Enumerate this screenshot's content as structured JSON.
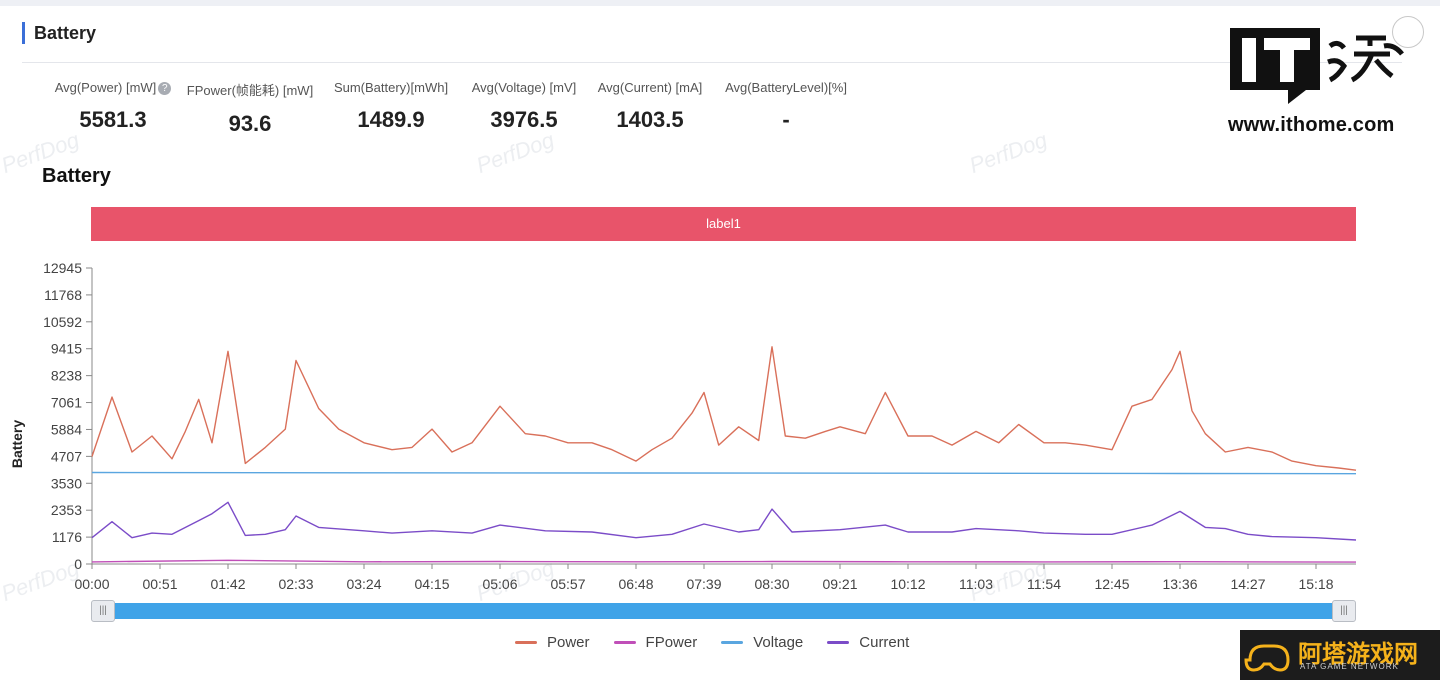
{
  "section": {
    "title": "Battery"
  },
  "metrics": [
    {
      "label": "Avg(Power) [mW]",
      "value": "5581.3",
      "help": true
    },
    {
      "label": "FPower(帧能耗) [mW]",
      "value": "93.6"
    },
    {
      "label": "Sum(Battery)[mWh]",
      "value": "1489.9"
    },
    {
      "label": "Avg(Voltage) [mV]",
      "value": "3976.5"
    },
    {
      "label": "Avg(Current) [mA]",
      "value": "1403.5"
    },
    {
      "label": "Avg(BatteryLevel)[%]",
      "value": "-"
    }
  ],
  "watermark": "PerfDog",
  "label_band": "label1",
  "logo": {
    "text": "www.ithome.com",
    "mark": "IT之家"
  },
  "badge": {
    "title": "阿塔游戏网",
    "subtitle": "ATA GAME NETWORK"
  },
  "chart_data": {
    "type": "line",
    "title": "Battery",
    "ylabel": "Battery",
    "xlabel": "",
    "y_ticks": [
      0,
      1176,
      2353,
      3530,
      4707,
      5884,
      7061,
      8238,
      9415,
      10592,
      11768,
      12945
    ],
    "ylim": [
      0,
      12945
    ],
    "x_ticks": [
      "00:00",
      "00:51",
      "01:42",
      "02:33",
      "03:24",
      "04:15",
      "05:06",
      "05:57",
      "06:48",
      "07:39",
      "08:30",
      "09:21",
      "10:12",
      "11:03",
      "11:54",
      "12:45",
      "13:36",
      "14:27",
      "15:18"
    ],
    "grid": false,
    "legend_position": "bottom",
    "series": [
      {
        "name": "Power",
        "color": "#d9705a",
        "x": [
          "00:00",
          "00:15",
          "00:30",
          "00:45",
          "01:00",
          "01:10",
          "01:20",
          "01:30",
          "01:42",
          "01:55",
          "02:10",
          "02:25",
          "02:33",
          "02:50",
          "03:05",
          "03:24",
          "03:45",
          "04:00",
          "04:15",
          "04:30",
          "04:45",
          "05:06",
          "05:25",
          "05:40",
          "05:57",
          "06:15",
          "06:30",
          "06:48",
          "07:00",
          "07:15",
          "07:30",
          "07:39",
          "07:50",
          "08:05",
          "08:20",
          "08:30",
          "08:40",
          "08:55",
          "09:10",
          "09:21",
          "09:40",
          "09:55",
          "10:12",
          "10:30",
          "10:45",
          "11:03",
          "11:20",
          "11:35",
          "11:54",
          "12:10",
          "12:25",
          "12:45",
          "13:00",
          "13:15",
          "13:30",
          "13:36",
          "13:45",
          "13:55",
          "14:10",
          "14:27",
          "14:45",
          "15:00",
          "15:18",
          "15:35",
          "15:48"
        ],
        "y": [
          4700,
          7300,
          4900,
          5600,
          4600,
          5800,
          7200,
          5300,
          9300,
          4400,
          5100,
          5900,
          8900,
          6800,
          5900,
          5300,
          5000,
          5100,
          5900,
          4900,
          5300,
          6900,
          5700,
          5600,
          5300,
          5300,
          5000,
          4500,
          5000,
          5500,
          6600,
          7500,
          5200,
          6000,
          5400,
          9500,
          5600,
          5500,
          5800,
          6000,
          5700,
          7500,
          5600,
          5600,
          5200,
          5800,
          5300,
          6100,
          5300,
          5300,
          5200,
          5000,
          6900,
          7200,
          8500,
          9300,
          6700,
          5700,
          4900,
          5100,
          4900,
          4500,
          4300,
          4200,
          4100
        ]
      },
      {
        "name": "FPower",
        "color": "#c04fb8",
        "x": [
          "00:00",
          "01:42",
          "03:24",
          "05:06",
          "06:48",
          "08:30",
          "10:12",
          "11:54",
          "13:36",
          "15:48"
        ],
        "y": [
          90,
          160,
          95,
          110,
          95,
          110,
          95,
          90,
          100,
          85
        ]
      },
      {
        "name": "Voltage",
        "color": "#5aa6e0",
        "x": [
          "00:00",
          "03:24",
          "06:48",
          "10:12",
          "13:36",
          "15:48"
        ],
        "y": [
          4000,
          3990,
          3980,
          3970,
          3960,
          3950
        ]
      },
      {
        "name": "Current",
        "color": "#7b4cc8",
        "x": [
          "00:00",
          "00:15",
          "00:30",
          "00:45",
          "01:00",
          "01:20",
          "01:30",
          "01:42",
          "01:55",
          "02:10",
          "02:25",
          "02:33",
          "02:50",
          "03:24",
          "03:45",
          "04:15",
          "04:45",
          "05:06",
          "05:40",
          "06:15",
          "06:48",
          "07:15",
          "07:39",
          "08:05",
          "08:20",
          "08:30",
          "08:45",
          "09:21",
          "09:55",
          "10:12",
          "10:45",
          "11:03",
          "11:35",
          "11:54",
          "12:25",
          "12:45",
          "13:15",
          "13:36",
          "13:55",
          "14:10",
          "14:27",
          "14:45",
          "15:18",
          "15:48"
        ],
        "y": [
          1150,
          1850,
          1150,
          1350,
          1300,
          1900,
          2200,
          2700,
          1250,
          1300,
          1500,
          2100,
          1600,
          1450,
          1350,
          1450,
          1350,
          1700,
          1450,
          1400,
          1150,
          1300,
          1750,
          1400,
          1500,
          2400,
          1400,
          1500,
          1700,
          1400,
          1400,
          1550,
          1450,
          1350,
          1300,
          1300,
          1700,
          2300,
          1600,
          1550,
          1300,
          1200,
          1150,
          1050
        ]
      }
    ]
  }
}
